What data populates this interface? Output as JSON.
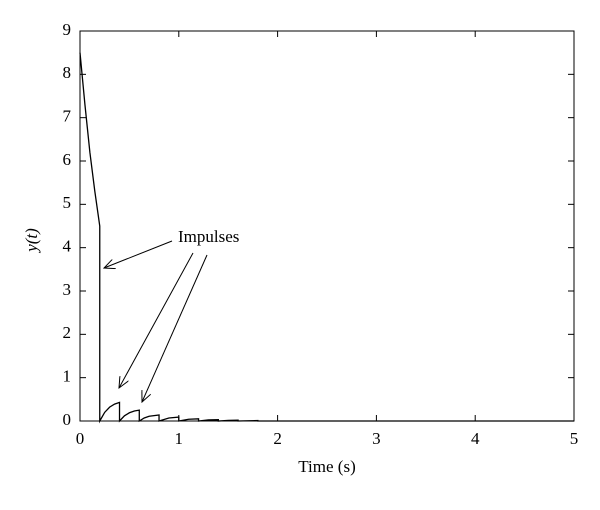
{
  "chart_data": {
    "type": "line",
    "x_label": "Time (s)",
    "y_label": "y(t)",
    "annotation": "Impulses",
    "series": [
      {
        "color": "#000000",
        "x": [
          0,
          0.05,
          0.1,
          0.15,
          0.2,
          0.2,
          0.25,
          0.3,
          0.35,
          0.4,
          0.4,
          0.45,
          0.5,
          0.55,
          0.6,
          0.6,
          0.65,
          0.7,
          0.8,
          0.8,
          0.9,
          1.0,
          1.0,
          1.1,
          1.2,
          1.2,
          1.3,
          1.4,
          1.4,
          1.5,
          1.6,
          1.6,
          1.8,
          1.8,
          5
        ],
        "values": [
          8.5,
          7.3,
          6.2,
          5.3,
          4.5,
          0,
          0.2,
          0.32,
          0.39,
          0.43,
          0,
          0.12,
          0.19,
          0.23,
          0.25,
          0,
          0.07,
          0.11,
          0.14,
          0,
          0.07,
          0.09,
          0,
          0.04,
          0.05,
          0,
          0.025,
          0.03,
          0,
          0.015,
          0.018,
          0,
          0.01,
          0,
          0
        ]
      }
    ],
    "xlim": [
      0,
      5
    ],
    "xticks": [
      0,
      1,
      2,
      3,
      4,
      5
    ],
    "ylim": [
      0,
      9
    ],
    "yticks": [
      0,
      1,
      2,
      3,
      4,
      5,
      6,
      7,
      8,
      9
    ]
  }
}
